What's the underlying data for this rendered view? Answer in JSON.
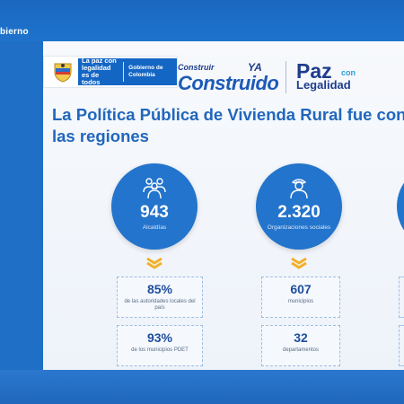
{
  "topbar": {
    "label": "bierno"
  },
  "header": {
    "gov_motto": "La paz con legalidad es de todos",
    "gov_name": "Gobierno de Colombia",
    "construir_small": "Construir",
    "construir_ya": "YA",
    "construir_big": "Construido",
    "paz_big": "Paz",
    "paz_con": "con",
    "paz_legalidad": "Legalidad"
  },
  "title": "La Política Pública de Vivienda Rural fue cons\nlas regiones",
  "stats": [
    {
      "value": "943",
      "label": "Alcaldías",
      "icon": "people-group-icon"
    },
    {
      "value": "2.320",
      "label": "Organizaciones sociales",
      "icon": "person-icon"
    }
  ],
  "boxes_col1": [
    {
      "value": "85%",
      "label": "de las autoridades locales del país"
    },
    {
      "value": "93%",
      "label": "de los municipios PDET"
    }
  ],
  "boxes_col2": [
    {
      "value": "607",
      "label": "municipios"
    },
    {
      "value": "32",
      "label": "departamentos"
    }
  ],
  "colors": {
    "brand_blue": "#2374cc",
    "title_blue": "#2167bd",
    "frame_blue": "#1f6fc6"
  }
}
